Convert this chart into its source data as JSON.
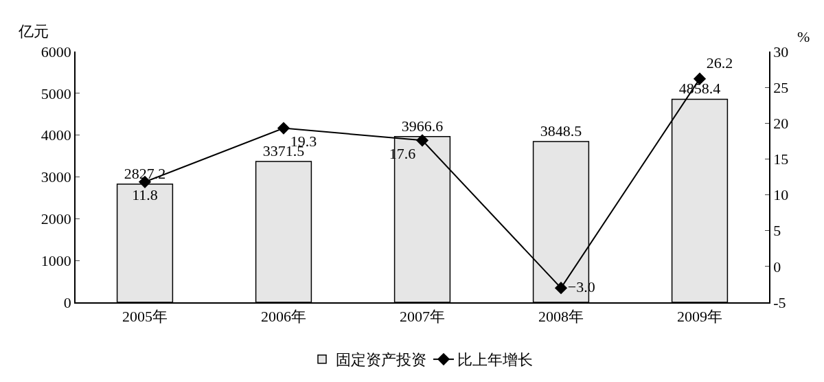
{
  "chart_data": {
    "type": "bar",
    "categories": [
      "2005年",
      "2006年",
      "2007年",
      "2008年",
      "2009年"
    ],
    "ylabel": "亿元",
    "y2label": "%",
    "series": [
      {
        "name": "固定资产投资",
        "color": "#e6e6e6",
        "values": [
          2827.2,
          3371.5,
          3966.6,
          3848.5,
          4858.4
        ],
        "value_labels": [
          "2827.2",
          "3371.5",
          "3966.6",
          "3848.5",
          "4858.4"
        ]
      },
      {
        "name": "比上年增长",
        "type": "line",
        "axis": "y2",
        "color": "#000000",
        "marker": "diamond",
        "line_style": "solid",
        "values": [
          11.8,
          19.3,
          17.6,
          -3.0,
          26.2
        ],
        "value_labels": [
          "11.8",
          "19.3",
          "17.6",
          "−3.0",
          "26.2"
        ]
      }
    ],
    "ylim": [
      0,
      6000
    ],
    "yticks": [
      0,
      1000,
      2000,
      3000,
      4000,
      5000,
      6000
    ],
    "y2lim": [
      -5,
      30
    ],
    "y2ticks": [
      -5,
      0,
      5,
      10,
      15,
      20,
      25,
      30
    ],
    "legend": "bottom"
  }
}
